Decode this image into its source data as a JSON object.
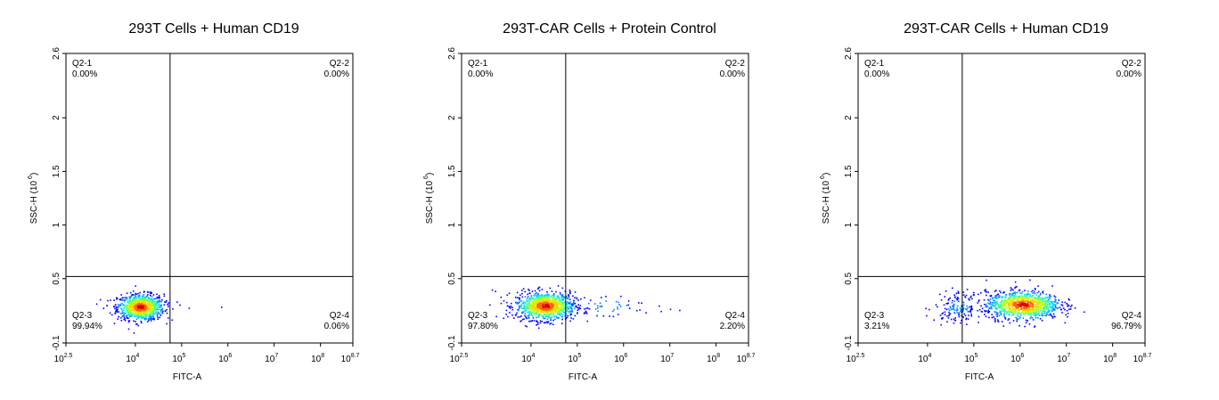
{
  "chart_data": [
    {
      "type": "scatter",
      "title": "293T Cells + Human CD19",
      "xlabel": "FITC-A",
      "ylabel_main": "SSC-H (10",
      "ylabel_exp": "6",
      "ylabel_close": ")",
      "x_scale": "log",
      "xlim_log10": [
        2.5,
        8.7
      ],
      "ylim": [
        -0.1,
        2.6
      ],
      "x_ticks": [
        {
          "base": "10",
          "exp": "2.5",
          "v": 2.5
        },
        {
          "base": "10",
          "exp": "4",
          "v": 4
        },
        {
          "base": "10",
          "exp": "5",
          "v": 5
        },
        {
          "base": "10",
          "exp": "6",
          "v": 6
        },
        {
          "base": "10",
          "exp": "7",
          "v": 7
        },
        {
          "base": "10",
          "exp": "8",
          "v": 8
        },
        {
          "base": "10",
          "exp": "8.7",
          "v": 8.7
        }
      ],
      "y_ticks": [
        {
          "label": "-0.1",
          "v": -0.1
        },
        {
          "label": "0.5",
          "v": 0.5
        },
        {
          "label": "1",
          "v": 1
        },
        {
          "label": "1.5",
          "v": 1.5
        },
        {
          "label": "2",
          "v": 2
        },
        {
          "label": "2.6",
          "v": 2.6
        }
      ],
      "gate_x_log10": 4.75,
      "gate_y": 0.52,
      "quadrants": [
        {
          "name": "Q2-1",
          "pct": "0.00%",
          "pos": "top-left"
        },
        {
          "name": "Q2-2",
          "pct": "0.00%",
          "pos": "top-right"
        },
        {
          "name": "Q2-3",
          "pct": "99.94%",
          "pos": "bottom-left"
        },
        {
          "name": "Q2-4",
          "pct": "0.06%",
          "pos": "bottom-right"
        }
      ],
      "populations": [
        {
          "cx": 4.1,
          "cy": 0.24,
          "sx": 0.25,
          "sy": 0.06,
          "n": 900
        }
      ],
      "sparse_points": [
        [
          3.15,
          0.27
        ],
        [
          3.3,
          0.23
        ],
        [
          4.95,
          0.26
        ],
        [
          5.15,
          0.23
        ],
        [
          5.85,
          0.24
        ]
      ]
    },
    {
      "type": "scatter",
      "title": "293T-CAR Cells + Protein Control",
      "xlabel": "FITC-A",
      "ylabel_main": "SSC-H (10",
      "ylabel_exp": "6",
      "ylabel_close": ")",
      "x_scale": "log",
      "xlim_log10": [
        2.5,
        8.7
      ],
      "ylim": [
        -0.1,
        2.6
      ],
      "x_ticks": [
        {
          "base": "10",
          "exp": "2.5",
          "v": 2.5
        },
        {
          "base": "10",
          "exp": "4",
          "v": 4
        },
        {
          "base": "10",
          "exp": "5",
          "v": 5
        },
        {
          "base": "10",
          "exp": "6",
          "v": 6
        },
        {
          "base": "10",
          "exp": "7",
          "v": 7
        },
        {
          "base": "10",
          "exp": "8",
          "v": 8
        },
        {
          "base": "10",
          "exp": "8.7",
          "v": 8.7
        }
      ],
      "y_ticks": [
        {
          "label": "-0.1",
          "v": -0.1
        },
        {
          "label": "0.5",
          "v": 0.5
        },
        {
          "label": "1",
          "v": 1
        },
        {
          "label": "1.5",
          "v": 1.5
        },
        {
          "label": "2",
          "v": 2
        },
        {
          "label": "2.6",
          "v": 2.6
        }
      ],
      "gate_x_log10": 4.75,
      "gate_y": 0.52,
      "quadrants": [
        {
          "name": "Q2-1",
          "pct": "0.00%",
          "pos": "top-left"
        },
        {
          "name": "Q2-2",
          "pct": "0.00%",
          "pos": "top-right"
        },
        {
          "name": "Q2-3",
          "pct": "97.80%",
          "pos": "bottom-left"
        },
        {
          "name": "Q2-4",
          "pct": "2.20%",
          "pos": "bottom-right"
        }
      ],
      "populations": [
        {
          "cx": 4.3,
          "cy": 0.25,
          "sx": 0.32,
          "sy": 0.065,
          "n": 1000
        },
        {
          "cx": 5.6,
          "cy": 0.25,
          "sx": 0.55,
          "sy": 0.06,
          "n": 45
        }
      ],
      "sparse_points": [
        [
          3.15,
          0.4
        ],
        [
          3.4,
          0.3
        ],
        [
          6.8,
          0.2
        ],
        [
          7.0,
          0.22
        ],
        [
          7.2,
          0.21
        ]
      ]
    },
    {
      "type": "scatter",
      "title": "293T-CAR Cells + Human CD19",
      "xlabel": "FITC-A",
      "ylabel_main": "SSC-H (10",
      "ylabel_exp": "6",
      "ylabel_close": ")",
      "x_scale": "log",
      "xlim_log10": [
        2.5,
        8.7
      ],
      "ylim": [
        -0.1,
        2.6
      ],
      "x_ticks": [
        {
          "base": "10",
          "exp": "2.5",
          "v": 2.5
        },
        {
          "base": "10",
          "exp": "4",
          "v": 4
        },
        {
          "base": "10",
          "exp": "5",
          "v": 5
        },
        {
          "base": "10",
          "exp": "6",
          "v": 6
        },
        {
          "base": "10",
          "exp": "7",
          "v": 7
        },
        {
          "base": "10",
          "exp": "8",
          "v": 8
        },
        {
          "base": "10",
          "exp": "8.7",
          "v": 8.7
        }
      ],
      "y_ticks": [
        {
          "label": "-0.1",
          "v": -0.1
        },
        {
          "label": "0.5",
          "v": 0.5
        },
        {
          "label": "1",
          "v": 1
        },
        {
          "label": "1.5",
          "v": 1.5
        },
        {
          "label": "2",
          "v": 2
        },
        {
          "label": "2.6",
          "v": 2.6
        }
      ],
      "gate_x_log10": 4.75,
      "gate_y": 0.52,
      "quadrants": [
        {
          "name": "Q2-1",
          "pct": "0.00%",
          "pos": "top-left"
        },
        {
          "name": "Q2-2",
          "pct": "0.00%",
          "pos": "top-right"
        },
        {
          "name": "Q2-3",
          "pct": "3.21%",
          "pos": "bottom-left"
        },
        {
          "name": "Q2-4",
          "pct": "96.79%",
          "pos": "bottom-right"
        }
      ],
      "populations": [
        {
          "cx": 6.05,
          "cy": 0.26,
          "sx": 0.4,
          "sy": 0.065,
          "n": 1000
        },
        {
          "cx": 4.65,
          "cy": 0.24,
          "sx": 0.25,
          "sy": 0.07,
          "n": 160
        }
      ],
      "sparse_points": [
        [
          4.25,
          0.36
        ],
        [
          4.3,
          0.18
        ],
        [
          5.3,
          0.38
        ]
      ]
    }
  ],
  "colors": {
    "axis": "#000000",
    "density": [
      "#0000ff",
      "#0080ff",
      "#00d0ff",
      "#40ff90",
      "#c0ff00",
      "#ffd000",
      "#ff6000",
      "#e00000"
    ]
  }
}
